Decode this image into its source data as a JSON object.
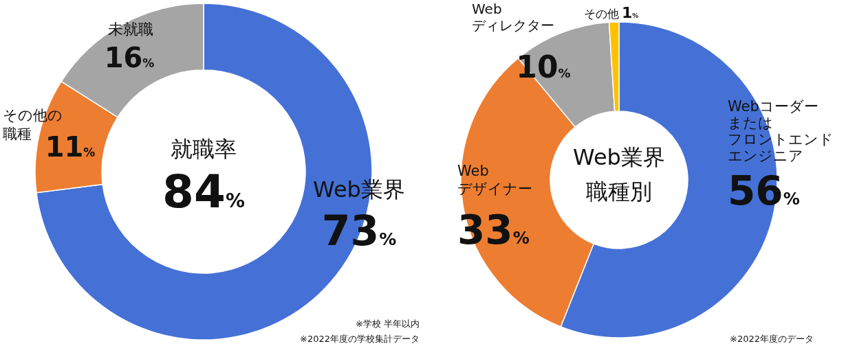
{
  "chart_data": [
    {
      "type": "donut",
      "title": "就職率",
      "subtitle": "84%",
      "categories": [
        "Web業界",
        "その他の職種",
        "未就職"
      ],
      "values": [
        73,
        11,
        16
      ],
      "value_labels": [
        "73%",
        "11%",
        "16%"
      ],
      "colors": [
        "#4571d6",
        "#ed7d31",
        "#a5a5a5"
      ],
      "annotations": [
        "※学校 半年以内",
        "※2022年度の学校集計データ"
      ]
    },
    {
      "type": "donut",
      "title": "Web業界職種別",
      "categories": [
        "Webコーダーまたはフロントエンドエンジニア",
        "Web\nデザイナー",
        "Web\nディレクター",
        "その他"
      ],
      "values": [
        56,
        33,
        10,
        1
      ],
      "value_labels": [
        "56%",
        "33%",
        "10%",
        "1%"
      ],
      "colors": [
        "#4571d6",
        "#ed7d31",
        "#a5a5a5",
        "#ffc000"
      ],
      "annotations": [
        "※2022年度のデータ"
      ]
    }
  ]
}
